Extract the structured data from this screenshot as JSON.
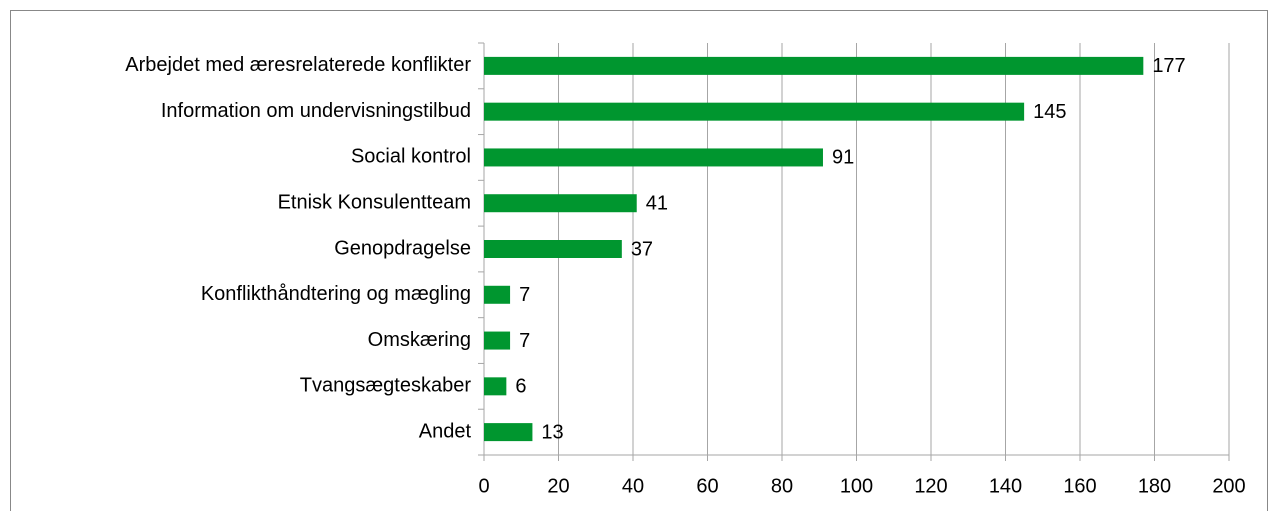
{
  "chart_data": {
    "type": "bar",
    "orientation": "horizontal",
    "categories": [
      "Arbejdet med æresrelaterede konflikter",
      "Information om undervisningstilbud",
      "Social kontrol",
      "Etnisk Konsulentteam",
      "Genopdragelse",
      "Konflikthåndtering og mægling",
      "Omskæring",
      "Tvangsægteskaber",
      "Andet"
    ],
    "values": [
      177,
      145,
      91,
      41,
      37,
      7,
      7,
      6,
      13
    ],
    "color": "#00962f",
    "xlim": [
      0,
      200
    ],
    "xticks": [
      0,
      20,
      40,
      60,
      80,
      100,
      120,
      140,
      160,
      180,
      200
    ],
    "grid": true,
    "data_labels": true
  }
}
